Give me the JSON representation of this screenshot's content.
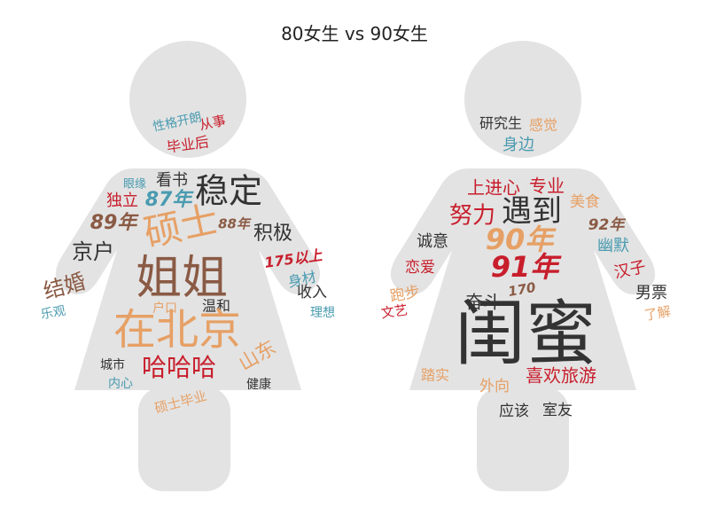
{
  "title": "80女生 vs 90女生",
  "colors": {
    "silhouette": "#e3e3e3",
    "dark": "#333333",
    "brown": "#8a5a44",
    "orange": "#e6a065",
    "teal": "#4a9bb0",
    "red": "#c81e2c",
    "gray": "#555555"
  },
  "chart_data": {
    "type": "wordcloud",
    "title": "80女生 vs 90女生",
    "clouds": [
      {
        "words": [
          {
            "text": "性格开朗",
            "weight": 14,
            "color": "teal",
            "rotate": -12
          },
          {
            "text": "从事",
            "weight": 15,
            "color": "red",
            "rotate": -12
          },
          {
            "text": "毕业后",
            "weight": 16,
            "color": "red",
            "rotate": -8
          },
          {
            "text": "眼缘",
            "weight": 13,
            "color": "teal",
            "rotate": 0
          },
          {
            "text": "看书",
            "weight": 18,
            "color": "dark",
            "rotate": 0
          },
          {
            "text": "稳定",
            "weight": 38,
            "color": "dark",
            "rotate": 0
          },
          {
            "text": "独立",
            "weight": 18,
            "color": "red",
            "rotate": 0
          },
          {
            "text": "87年",
            "weight": 22,
            "color": "teal",
            "rotate": 0
          },
          {
            "text": "89年",
            "weight": 22,
            "color": "brown",
            "rotate": 0
          },
          {
            "text": "硕士",
            "weight": 42,
            "color": "orange",
            "rotate": -12
          },
          {
            "text": "88年",
            "weight": 15,
            "color": "brown",
            "rotate": 0
          },
          {
            "text": "积极",
            "weight": 22,
            "color": "dark",
            "rotate": 0
          },
          {
            "text": "京户",
            "weight": 24,
            "color": "dark",
            "rotate": 0
          },
          {
            "text": "姐姐",
            "weight": 52,
            "color": "brown",
            "rotate": 0
          },
          {
            "text": "175以上",
            "weight": 16,
            "color": "red",
            "rotate": -8
          },
          {
            "text": "身材",
            "weight": 16,
            "color": "teal",
            "rotate": -12
          },
          {
            "text": "结婚",
            "weight": 24,
            "color": "brown",
            "rotate": -15
          },
          {
            "text": "户口",
            "weight": 14,
            "color": "orange",
            "rotate": 0
          },
          {
            "text": "温和",
            "weight": 16,
            "color": "dark",
            "rotate": 0
          },
          {
            "text": "收入",
            "weight": 17,
            "color": "dark",
            "rotate": 0
          },
          {
            "text": "乐观",
            "weight": 14,
            "color": "teal",
            "rotate": -10
          },
          {
            "text": "在北京",
            "weight": 48,
            "color": "orange",
            "rotate": 0
          },
          {
            "text": "理想",
            "weight": 14,
            "color": "teal",
            "rotate": 0
          },
          {
            "text": "山东",
            "weight": 22,
            "color": "orange",
            "rotate": -30
          },
          {
            "text": "城市",
            "weight": 14,
            "color": "dark",
            "rotate": 0
          },
          {
            "text": "哈哈哈",
            "weight": 28,
            "color": "red",
            "rotate": 0
          },
          {
            "text": "内心",
            "weight": 14,
            "color": "teal",
            "rotate": 0
          },
          {
            "text": "健康",
            "weight": 14,
            "color": "dark",
            "rotate": 0
          },
          {
            "text": "硕士毕业",
            "weight": 15,
            "color": "orange",
            "rotate": -15
          }
        ]
      },
      {
        "words": [
          {
            "text": "研究生",
            "weight": 16,
            "color": "dark",
            "rotate": 0
          },
          {
            "text": "感觉",
            "weight": 16,
            "color": "orange",
            "rotate": 0
          },
          {
            "text": "身边",
            "weight": 18,
            "color": "teal",
            "rotate": 0
          },
          {
            "text": "上进心",
            "weight": 20,
            "color": "red",
            "rotate": 0
          },
          {
            "text": "专业",
            "weight": 20,
            "color": "red",
            "rotate": 0
          },
          {
            "text": "美食",
            "weight": 17,
            "color": "orange",
            "rotate": 0
          },
          {
            "text": "遇到",
            "weight": 34,
            "color": "dark",
            "rotate": 0
          },
          {
            "text": "努力",
            "weight": 26,
            "color": "red",
            "rotate": 0
          },
          {
            "text": "92年",
            "weight": 17,
            "color": "brown",
            "rotate": 0
          },
          {
            "text": "诚意",
            "weight": 18,
            "color": "dark",
            "rotate": 0
          },
          {
            "text": "90年",
            "weight": 32,
            "color": "orange",
            "rotate": 0
          },
          {
            "text": "幽默",
            "weight": 18,
            "color": "teal",
            "rotate": 0
          },
          {
            "text": "恋爱",
            "weight": 17,
            "color": "red",
            "rotate": 0
          },
          {
            "text": "91年",
            "weight": 32,
            "color": "red",
            "rotate": 0
          },
          {
            "text": "汉子",
            "weight": 18,
            "color": "red",
            "rotate": -12
          },
          {
            "text": "跑步",
            "weight": 17,
            "color": "orange",
            "rotate": -10
          },
          {
            "text": "170",
            "weight": 15,
            "color": "brown",
            "rotate": -10
          },
          {
            "text": "男票",
            "weight": 18,
            "color": "dark",
            "rotate": 0
          },
          {
            "text": "奋斗",
            "weight": 20,
            "color": "dark",
            "rotate": 0
          },
          {
            "text": "文艺",
            "weight": 15,
            "color": "red",
            "rotate": -8
          },
          {
            "text": "了解",
            "weight": 15,
            "color": "orange",
            "rotate": -10
          },
          {
            "text": "闺蜜",
            "weight": 80,
            "color": "dark",
            "rotate": 0
          },
          {
            "text": "踏实",
            "weight": 16,
            "color": "orange",
            "rotate": 0
          },
          {
            "text": "外向",
            "weight": 17,
            "color": "orange",
            "rotate": 0
          },
          {
            "text": "喜欢旅游",
            "weight": 20,
            "color": "red",
            "rotate": 0
          },
          {
            "text": "应该",
            "weight": 17,
            "color": "dark",
            "rotate": 0
          },
          {
            "text": "室友",
            "weight": 17,
            "color": "dark",
            "rotate": 0
          }
        ]
      }
    ]
  }
}
